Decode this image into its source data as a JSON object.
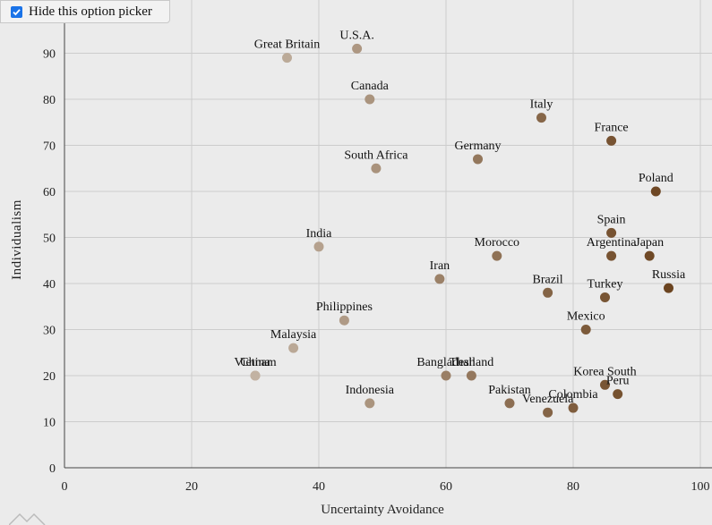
{
  "picker": {
    "label": "Hide this option picker",
    "checked": true
  },
  "chart_data": {
    "type": "scatter",
    "xlabel": "Uncertainty Avoidance",
    "ylabel": "Individualism",
    "xlim": [
      0,
      100
    ],
    "ylim": [
      0,
      100
    ],
    "xticks": [
      0,
      20,
      40,
      60,
      80,
      100
    ],
    "yticks": [
      0,
      10,
      20,
      30,
      40,
      50,
      60,
      70,
      80,
      90
    ],
    "grid": true,
    "color_low": "#c2b2a2",
    "color_high": "#6b4420",
    "points": [
      {
        "label": "Great Britain",
        "x": 35,
        "y": 89
      },
      {
        "label": "U.S.A.",
        "x": 46,
        "y": 91
      },
      {
        "label": "Canada",
        "x": 48,
        "y": 80
      },
      {
        "label": "Italy",
        "x": 75,
        "y": 76
      },
      {
        "label": "France",
        "x": 86,
        "y": 71
      },
      {
        "label": "Germany",
        "x": 65,
        "y": 67
      },
      {
        "label": "South Africa",
        "x": 49,
        "y": 65
      },
      {
        "label": "Poland",
        "x": 93,
        "y": 60
      },
      {
        "label": "Spain",
        "x": 86,
        "y": 51
      },
      {
        "label": "India",
        "x": 40,
        "y": 48
      },
      {
        "label": "Morocco",
        "x": 68,
        "y": 46
      },
      {
        "label": "Argentina",
        "x": 86,
        "y": 46
      },
      {
        "label": "Japan",
        "x": 92,
        "y": 46
      },
      {
        "label": "Iran",
        "x": 59,
        "y": 41
      },
      {
        "label": "Russia",
        "x": 95,
        "y": 39
      },
      {
        "label": "Brazil",
        "x": 76,
        "y": 38
      },
      {
        "label": "Turkey",
        "x": 85,
        "y": 37
      },
      {
        "label": "Philippines",
        "x": 44,
        "y": 32
      },
      {
        "label": "Mexico",
        "x": 82,
        "y": 30
      },
      {
        "label": "Malaysia",
        "x": 36,
        "y": 26
      },
      {
        "label": "Vietnam",
        "x": 30,
        "y": 20
      },
      {
        "label": "China",
        "x": 30,
        "y": 20
      },
      {
        "label": "Bangladesh",
        "x": 60,
        "y": 20
      },
      {
        "label": "Thailand",
        "x": 64,
        "y": 20
      },
      {
        "label": "Korea South",
        "x": 85,
        "y": 18
      },
      {
        "label": "Peru",
        "x": 87,
        "y": 16
      },
      {
        "label": "Indonesia",
        "x": 48,
        "y": 14
      },
      {
        "label": "Pakistan",
        "x": 70,
        "y": 14
      },
      {
        "label": "Colombia",
        "x": 80,
        "y": 13
      },
      {
        "label": "Venezuela",
        "x": 76,
        "y": 12
      }
    ]
  }
}
